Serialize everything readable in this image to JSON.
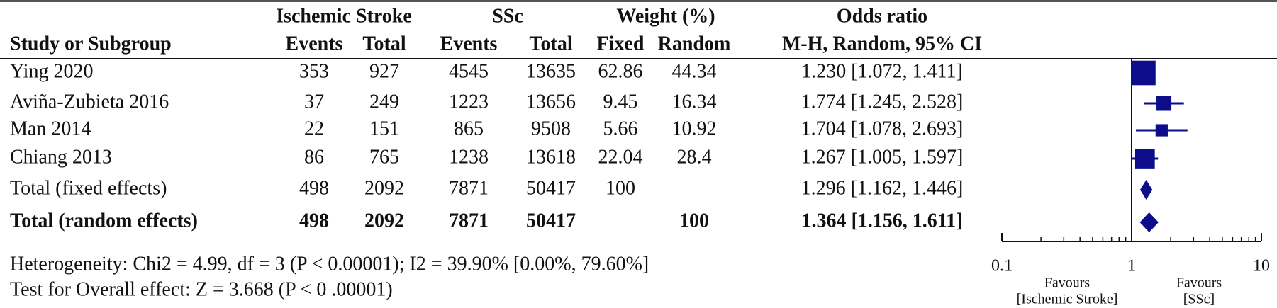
{
  "chart_data": {
    "type": "forest",
    "header_groups": [
      "Ischemic Stroke",
      "SSc",
      "Weight (%)",
      "Odds ratio"
    ],
    "columns": [
      "Study or Subgroup",
      "Events",
      "Total",
      "Events",
      "Total",
      "Fixed",
      "Random",
      "M-H, Random, 95% CI"
    ],
    "rows": [
      {
        "study": "Ying 2020",
        "events1": 353,
        "total1": 927,
        "events2": 4545,
        "total2": 13635,
        "weight_fixed": 62.86,
        "weight_random": 44.34,
        "ci_label": "1.230 [1.072, 1.411]",
        "or": 1.23,
        "ci_low": 1.072,
        "ci_high": 1.411
      },
      {
        "study": "Aviña-Zubieta 2016",
        "events1": 37,
        "total1": 249,
        "events2": 1223,
        "total2": 13656,
        "weight_fixed": 9.45,
        "weight_random": 16.34,
        "ci_label": "1.774 [1.245, 2.528]",
        "or": 1.774,
        "ci_low": 1.245,
        "ci_high": 2.528
      },
      {
        "study": "Man 2014",
        "events1": 22,
        "total1": 151,
        "events2": 865,
        "total2": 9508,
        "weight_fixed": 5.66,
        "weight_random": 10.92,
        "ci_label": "1.704 [1.078, 2.693]",
        "or": 1.704,
        "ci_low": 1.078,
        "ci_high": 2.693
      },
      {
        "study": "Chiang 2013",
        "events1": 86,
        "total1": 765,
        "events2": 1238,
        "total2": 13618,
        "weight_fixed": 22.04,
        "weight_random": 28.4,
        "ci_label": "1.267 [1.005, 1.597]",
        "or": 1.267,
        "ci_low": 1.005,
        "ci_high": 1.597
      },
      {
        "study": "Total (fixed effects)",
        "events1": 498,
        "total1": 2092,
        "events2": 7871,
        "total2": 50417,
        "weight_fixed": 100,
        "weight_random": null,
        "ci_label": "1.296 [1.162, 1.446]",
        "or": 1.296,
        "ci_low": 1.162,
        "ci_high": 1.446
      },
      {
        "study": "Total (random effects)",
        "events1": 498,
        "total1": 2092,
        "events2": 7871,
        "total2": 50417,
        "weight_fixed": null,
        "weight_random": 100,
        "ci_label": "1.364 [1.156, 1.611]",
        "or": 1.364,
        "ci_low": 1.156,
        "ci_high": 1.611
      }
    ],
    "heterogeneity": "Heterogeneity: Chi2 = 4.99, df = 3 (P < 0.00001); I2 = 39.90% [0.00%, 79.60%]",
    "overall_effect": "Test for Overall effect: Z = 3.668 (P < 0 .00001)",
    "log_x": true,
    "xlim": [
      0.1,
      10
    ],
    "xticks": [
      0.1,
      1,
      10
    ],
    "xminor_ticks": [
      0.2,
      0.3,
      0.4,
      0.5,
      0.6,
      0.7,
      0.8,
      0.9,
      2,
      3,
      4,
      5,
      6,
      7,
      8,
      9
    ],
    "x_left_label": [
      "Favours",
      "[Ischemic Stroke]"
    ],
    "x_right_label": [
      "Favours",
      "[SSc]"
    ],
    "color": "#0d0d8c"
  }
}
